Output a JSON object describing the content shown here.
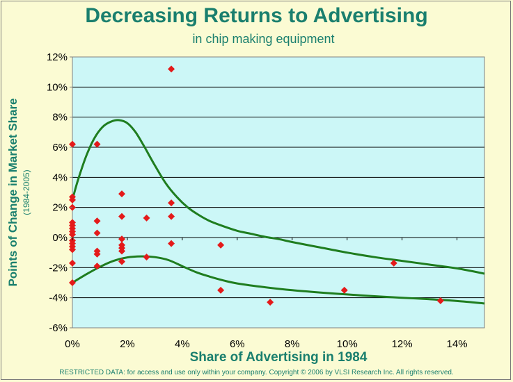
{
  "chart_data": {
    "type": "scatter",
    "title": "Decreasing Returns to Advertising",
    "subtitle": "in chip making equipment",
    "xlabel": "Share of Advertising in 1984",
    "ylabel": "Points of Change in Market Share",
    "ylabel_sub": "(1984-2005)",
    "xlim": [
      0,
      15
    ],
    "ylim": [
      -6,
      12
    ],
    "x_ticks": [
      0,
      2,
      4,
      6,
      8,
      10,
      12,
      14
    ],
    "x_tick_labels": [
      "0%",
      "2%",
      "4%",
      "6%",
      "8%",
      "10%",
      "12%",
      "14%"
    ],
    "y_ticks": [
      -6,
      -4,
      -2,
      0,
      2,
      4,
      6,
      8,
      10,
      12
    ],
    "y_tick_labels": [
      "-6%",
      "-4%",
      "-2%",
      "0%",
      "2%",
      "4%",
      "6%",
      "8%",
      "10%",
      "12%"
    ],
    "grid": "horizontal",
    "plot_background": "#ccf7f7",
    "marker_color": "#e41a1a",
    "curve_color": "#1f7d1f",
    "points": [
      {
        "x": 0.0,
        "y": 6.2
      },
      {
        "x": 0.0,
        "y": 2.7
      },
      {
        "x": 0.0,
        "y": 2.5
      },
      {
        "x": 0.0,
        "y": 2.0
      },
      {
        "x": 0.0,
        "y": 1.0
      },
      {
        "x": 0.0,
        "y": 0.8
      },
      {
        "x": 0.0,
        "y": 0.6
      },
      {
        "x": 0.0,
        "y": 0.4
      },
      {
        "x": 0.0,
        "y": 0.2
      },
      {
        "x": 0.0,
        "y": -0.2
      },
      {
        "x": 0.0,
        "y": -0.4
      },
      {
        "x": 0.0,
        "y": -0.6
      },
      {
        "x": 0.0,
        "y": -0.8
      },
      {
        "x": 0.0,
        "y": -1.7
      },
      {
        "x": 0.0,
        "y": -3.0
      },
      {
        "x": 0.9,
        "y": 6.2
      },
      {
        "x": 0.9,
        "y": 1.1
      },
      {
        "x": 0.9,
        "y": 0.3
      },
      {
        "x": 0.9,
        "y": -0.9
      },
      {
        "x": 0.9,
        "y": -1.1
      },
      {
        "x": 0.9,
        "y": -1.9
      },
      {
        "x": 1.8,
        "y": 2.9
      },
      {
        "x": 1.8,
        "y": 1.4
      },
      {
        "x": 1.8,
        "y": -0.1
      },
      {
        "x": 1.8,
        "y": -0.5
      },
      {
        "x": 1.8,
        "y": -0.7
      },
      {
        "x": 1.8,
        "y": -0.9
      },
      {
        "x": 1.8,
        "y": -1.6
      },
      {
        "x": 2.7,
        "y": 1.3
      },
      {
        "x": 2.7,
        "y": -1.3
      },
      {
        "x": 3.6,
        "y": 11.2
      },
      {
        "x": 3.6,
        "y": 2.3
      },
      {
        "x": 3.6,
        "y": 1.4
      },
      {
        "x": 3.6,
        "y": -0.4
      },
      {
        "x": 5.4,
        "y": -0.5
      },
      {
        "x": 5.4,
        "y": -3.5
      },
      {
        "x": 7.2,
        "y": -4.3
      },
      {
        "x": 9.9,
        "y": -3.5
      },
      {
        "x": 11.7,
        "y": -1.7
      },
      {
        "x": 13.4,
        "y": -4.2
      }
    ],
    "curves": [
      {
        "x": [
          0.0,
          0.2,
          0.5,
          0.8,
          1.1,
          1.4,
          1.7,
          2.0,
          2.3,
          2.6,
          3.0,
          3.4,
          3.8,
          4.2,
          4.6,
          5.0,
          5.5,
          6.0,
          6.5,
          7.0,
          7.5,
          8.0,
          9.0,
          10.0,
          11.0,
          12.0,
          13.0,
          14.0,
          15.0
        ],
        "y": [
          2.5,
          3.8,
          5.4,
          6.6,
          7.35,
          7.7,
          7.8,
          7.6,
          7.0,
          6.1,
          4.8,
          3.6,
          2.7,
          2.0,
          1.5,
          1.1,
          0.75,
          0.45,
          0.25,
          0.05,
          -0.1,
          -0.3,
          -0.65,
          -1.0,
          -1.3,
          -1.55,
          -1.8,
          -2.05,
          -2.4
        ]
      },
      {
        "x": [
          0.0,
          0.5,
          1.0,
          1.5,
          2.0,
          2.5,
          3.0,
          3.5,
          4.0,
          4.5,
          5.0,
          5.5,
          6.0,
          7.0,
          8.0,
          9.0,
          10.0,
          11.0,
          12.0,
          13.0,
          14.0,
          15.0
        ],
        "y": [
          -3.0,
          -2.45,
          -1.95,
          -1.55,
          -1.32,
          -1.25,
          -1.3,
          -1.5,
          -1.9,
          -2.3,
          -2.6,
          -2.85,
          -3.05,
          -3.3,
          -3.5,
          -3.65,
          -3.78,
          -3.9,
          -4.0,
          -4.1,
          -4.22,
          -4.38
        ]
      }
    ]
  },
  "footer": "RESTRICTED DATA:  for access and use only within your company.  Copyright © 2006 by VLSI Research Inc.   All rights reserved."
}
